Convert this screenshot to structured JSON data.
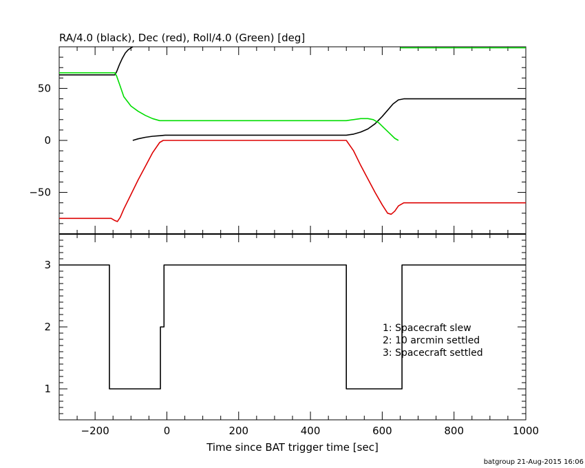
{
  "chart_data": [
    {
      "type": "line",
      "title": "RA/4.0 (black), Dec (red), Roll/4.0 (Green) [deg]",
      "xlim": [
        -300,
        1000
      ],
      "ylim": [
        -90,
        90
      ],
      "yticks": [
        -50,
        0,
        50
      ],
      "series": [
        {
          "color": "#000000",
          "x": [
            -300,
            -145,
            -140,
            -132,
            -124,
            -116,
            -108,
            -100,
            -95
          ],
          "y": [
            63,
            63,
            66,
            73,
            79,
            84,
            87,
            89,
            90
          ]
        },
        {
          "color": "#000000",
          "x": [
            -95,
            -80,
            -60,
            -40,
            -20,
            -5,
            100,
            300,
            500,
            520,
            540,
            560,
            580,
            600,
            615,
            630,
            645,
            660,
            680,
            1000
          ],
          "y": [
            0,
            1.5,
            3,
            4,
            4.5,
            5,
            5,
            5,
            5,
            6,
            8,
            11,
            16,
            23,
            29,
            35,
            39,
            40,
            40,
            40
          ]
        },
        {
          "color": "#dd0000",
          "x": [
            -300,
            -155,
            -145,
            -138,
            -130,
            -120,
            -100,
            -80,
            -60,
            -40,
            -20,
            -10,
            0,
            100,
            300,
            500,
            520,
            540,
            560,
            580,
            600,
            615,
            625,
            635,
            645,
            660,
            1000
          ],
          "y": [
            -75,
            -75,
            -77,
            -78,
            -74,
            -66,
            -52,
            -38,
            -25,
            -12,
            -2,
            0,
            0,
            0,
            0,
            0,
            -10,
            -24,
            -37,
            -50,
            -62,
            -70,
            -71,
            -68,
            -63,
            -60,
            -60
          ]
        },
        {
          "color": "#00dd00",
          "x": [
            -300,
            -145,
            -140,
            -130,
            -120,
            -100,
            -80,
            -60,
            -40,
            -20,
            0,
            100,
            300,
            500,
            520,
            540,
            560,
            575,
            590,
            605,
            620,
            635,
            645
          ],
          "y": [
            65,
            65,
            62,
            52,
            42,
            33,
            28,
            24,
            21,
            19,
            19,
            19,
            19,
            19,
            20,
            21,
            21,
            20,
            17,
            12,
            7,
            2,
            0
          ]
        },
        {
          "color": "#00dd00",
          "x": [
            650,
            1000
          ],
          "y": [
            89,
            89
          ]
        }
      ]
    },
    {
      "type": "line",
      "xlabel": "Time since BAT trigger time [sec]",
      "xlim": [
        -300,
        1000
      ],
      "ylim": [
        0.5,
        3.5
      ],
      "xticks": [
        -200,
        0,
        200,
        400,
        600,
        800,
        1000
      ],
      "yticks": [
        1,
        2,
        3
      ],
      "series": [
        {
          "color": "#000000",
          "step": true,
          "x": [
            -300,
            -160,
            -160,
            -18,
            -18,
            -8,
            -8,
            500,
            500,
            655,
            655,
            1000
          ],
          "y": [
            3,
            3,
            1,
            1,
            2,
            2,
            3,
            3,
            1,
            1,
            3,
            3
          ]
        }
      ],
      "legend": [
        "1: Spacecraft slew",
        "2: 10 arcmin settled",
        "3: Spacecraft settled"
      ]
    }
  ],
  "footer": "batgroup 21-Aug-2015 16:06"
}
